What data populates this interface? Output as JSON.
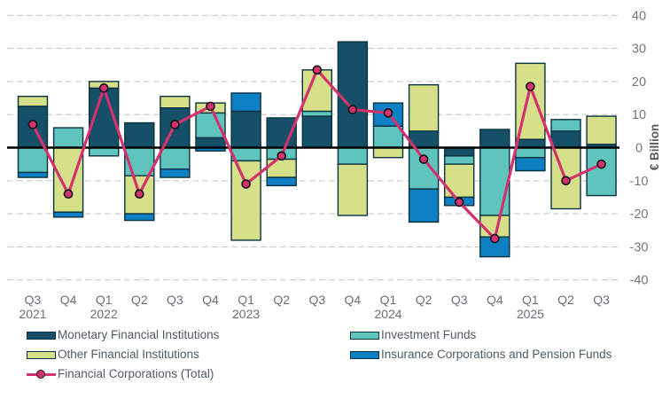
{
  "chart_data": {
    "type": "bar",
    "subtype": "stacked-bar-with-line-overlay",
    "title": "",
    "xlabel": "",
    "ylabel": "€ Billion",
    "ylim": [
      -40,
      40
    ],
    "yticks": [
      40,
      30,
      20,
      10,
      0,
      -10,
      -20,
      -30,
      -40
    ],
    "grid": "dashed-horizontal",
    "legend_position": "bottom",
    "categories": [
      "Q3 2021",
      "Q4 2021",
      "Q1 2022",
      "Q2 2022",
      "Q3 2022",
      "Q4 2022",
      "Q1 2023",
      "Q2 2023",
      "Q3 2023",
      "Q4 2023",
      "Q1 2024",
      "Q2 2024",
      "Q3 2024",
      "Q4 2024",
      "Q1 2025",
      "Q2 2025",
      "Q3 2025"
    ],
    "x_quarter_labels": [
      "Q3",
      "Q4",
      "Q1",
      "Q2",
      "Q3",
      "Q4",
      "Q1",
      "Q2",
      "Q3",
      "Q4",
      "Q1",
      "Q2",
      "Q3",
      "Q4",
      "Q1",
      "Q2",
      "Q3"
    ],
    "x_year_labels": [
      "2021",
      "",
      "2022",
      "",
      "",
      "",
      "2023",
      "",
      "",
      "",
      "2024",
      "",
      "",
      "",
      "2025",
      "",
      ""
    ],
    "series": [
      {
        "key": "mfi",
        "name": "Monetary Financial Institutions",
        "color": "#154f68",
        "values": [
          12.5,
          0,
          18,
          7.5,
          12,
          3,
          11,
          9,
          9.5,
          32,
          0,
          5,
          -2.5,
          5.5,
          2.5,
          5,
          1
        ]
      },
      {
        "key": "if",
        "name": "Investment Funds",
        "color": "#5fc4bc",
        "values": [
          -7.5,
          6,
          -2.5,
          -8.5,
          -6.5,
          7.5,
          -4,
          -3.5,
          1.5,
          -5,
          6.5,
          -12.5,
          -2.5,
          -20.5,
          -3,
          3.5,
          -14.5
        ]
      },
      {
        "key": "ofi",
        "name": "Other Financial Institutions",
        "color": "#d5e089",
        "values": [
          3,
          -19.5,
          2,
          -11.5,
          3.5,
          3,
          -24,
          -5.5,
          12.5,
          -15.5,
          -3,
          14,
          -10,
          -6.5,
          23,
          -18.5,
          8.5
        ]
      },
      {
        "key": "icpf",
        "name": "Insurance Corporations and Pension Funds",
        "color": "#0d7fc3",
        "values": [
          -1.5,
          -1.5,
          0,
          -2,
          -2.5,
          -1,
          5.5,
          -2.5,
          0,
          0,
          7,
          -10,
          -2.5,
          -6,
          -4,
          0,
          0
        ]
      }
    ],
    "line_series": {
      "key": "total",
      "name": "Financial Corporations (Total)",
      "color": "#d4326f",
      "values": [
        7,
        -14,
        18,
        -14,
        7,
        12.5,
        -11,
        -2.5,
        23.5,
        11.5,
        10.5,
        -3.5,
        -16.5,
        -27.5,
        18.5,
        -10,
        -5
      ]
    }
  },
  "legend": {
    "mfi": "Monetary Financial Institutions",
    "ofi": "Other Financial Institutions",
    "total": "Financial Corporations (Total)",
    "if": "Investment Funds",
    "icpf": "Insurance Corporations and Pension Funds"
  },
  "colors": {
    "grid": "#c9cacb",
    "zero_line": "#000000",
    "bar_border": "#0a3140",
    "y_tick_text": "#75797d",
    "x_tick_text": "#6d7176",
    "ylabel_text": "#55595e",
    "legend_text": "#515c64",
    "marker_outline": "#141414"
  }
}
